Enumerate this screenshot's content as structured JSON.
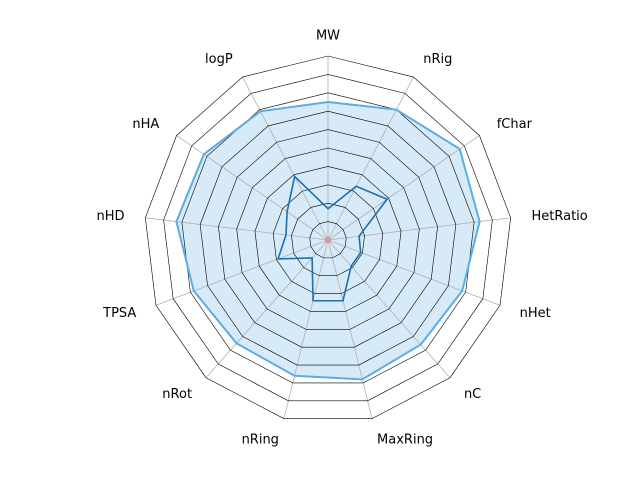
{
  "chart_data": {
    "type": "radar",
    "title": "",
    "axes": [
      "MW",
      "nRig",
      "fChar",
      "HetRatio",
      "nHet",
      "nC",
      "MaxRing",
      "nRing",
      "nRot",
      "TPSA",
      "nHD",
      "nHA",
      "logP"
    ],
    "rlim": [
      0,
      1
    ],
    "grid_levels": [
      0.1,
      0.2,
      0.3,
      0.4,
      0.5,
      0.6,
      0.7,
      0.8,
      0.9,
      1.0
    ],
    "series": [
      {
        "role": "reference-upper",
        "values": [
          0.75,
          0.8,
          0.87,
          0.83,
          0.78,
          0.76,
          0.78,
          0.76,
          0.75,
          0.78,
          0.83,
          0.82,
          0.79
        ],
        "color": "#5dade2",
        "fill": "#d6eaf8"
      },
      {
        "role": "compound",
        "values": [
          0.17,
          0.33,
          0.39,
          0.17,
          0.19,
          0.19,
          0.34,
          0.34,
          0.13,
          0.29,
          0.23,
          0.27,
          0.39
        ],
        "color": "#1f6fad"
      },
      {
        "role": "reference-lower",
        "values": [
          0,
          0,
          0,
          0,
          0,
          0,
          0,
          0,
          0,
          0,
          0,
          0,
          0
        ],
        "color": "#f08080"
      }
    ]
  }
}
